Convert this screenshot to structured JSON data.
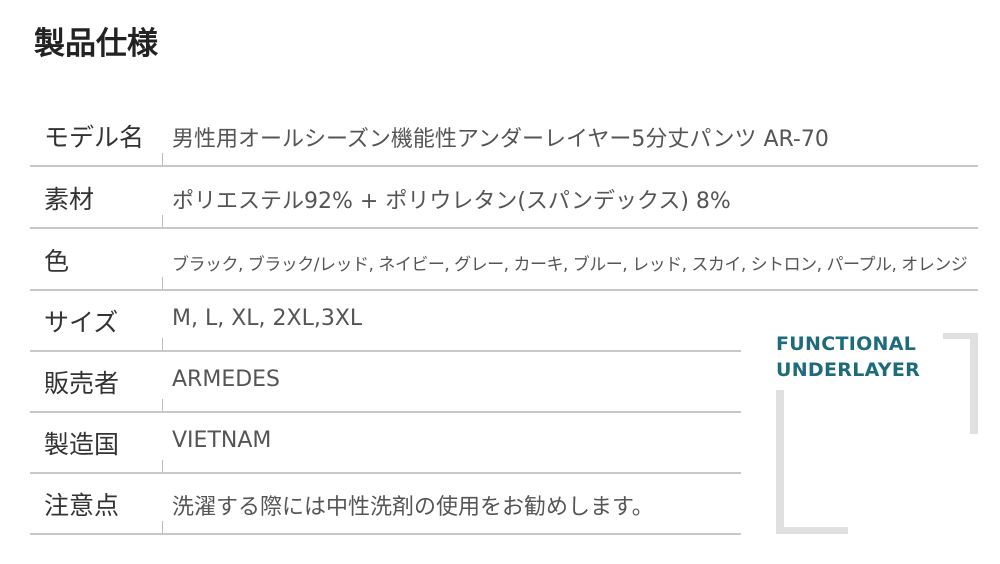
{
  "title": "製品仕様",
  "specs": [
    {
      "label": "モデル名",
      "value": "男性用オールシーズン機能性アンダーレイヤー5分丈パンツ AR-70"
    },
    {
      "label": "素材",
      "value": "ポリエステル92% + ポリウレタン(スパンデックス) 8%"
    },
    {
      "label": "色",
      "value": "ブラック, ブラック/レッド, ネイビー, グレー, カーキ, ブルー, レッド, スカイ, シトロン, パープル, オレンジ"
    },
    {
      "label": "サイズ",
      "value": "M, L, XL, 2XL,3XL"
    },
    {
      "label": "販売者",
      "value": "ARMEDES"
    },
    {
      "label": "製造国",
      "value": "VIETNAM"
    },
    {
      "label": "注意点",
      "value": "洗濯する際には中性洗剤の使用をお勧めします。"
    }
  ],
  "brand": {
    "line1": "FUNCTIONAL",
    "line2": "UNDERLAYER",
    "color": "#1e6b7b"
  }
}
